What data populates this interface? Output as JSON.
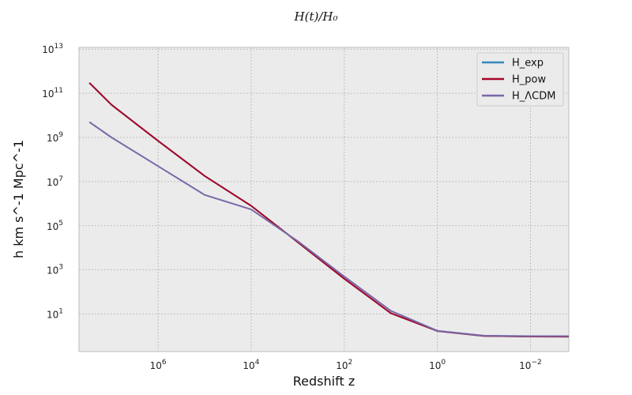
{
  "chart_data": {
    "type": "line",
    "title": "H(t)/H₀",
    "xlabel": "Redshift z",
    "ylabel": "h km s^-1 Mpc^-1",
    "x_scale": "log",
    "y_scale": "log",
    "x_reversed": true,
    "xlim": [
      50000000,
      0.0015
    ],
    "ylim": [
      0.2,
      12000000000000
    ],
    "x_ticks": [
      {
        "value": 1000000,
        "base": "10",
        "exp": "6"
      },
      {
        "value": 10000,
        "base": "10",
        "exp": "4"
      },
      {
        "value": 100,
        "base": "10",
        "exp": "2"
      },
      {
        "value": 1,
        "base": "10",
        "exp": "0"
      },
      {
        "value": 0.01,
        "base": "10",
        "exp": "−2"
      }
    ],
    "y_ticks": [
      {
        "value": 10,
        "base": "10",
        "exp": "1"
      },
      {
        "value": 1000,
        "base": "10",
        "exp": "3"
      },
      {
        "value": 100000,
        "base": "10",
        "exp": "5"
      },
      {
        "value": 10000000,
        "base": "10",
        "exp": "7"
      },
      {
        "value": 1000000000,
        "base": "10",
        "exp": "9"
      },
      {
        "value": 100000000000,
        "base": "10",
        "exp": "11"
      },
      {
        "value": 10000000000000,
        "base": "10",
        "exp": "13"
      }
    ],
    "grid": true,
    "legend_position": "top-right",
    "series": [
      {
        "name": "H_exp",
        "color": "#348ABD",
        "points": [
          [
            30000000,
            300000000000
          ],
          [
            10000000,
            30000000000
          ],
          [
            1000000,
            700000000
          ],
          [
            100000,
            18000000
          ],
          [
            10000,
            800000
          ],
          [
            1000,
            18000
          ],
          [
            100,
            400
          ],
          [
            10,
            11
          ],
          [
            1,
            1.7
          ],
          [
            0.1,
            1.02
          ],
          [
            0.01,
            0.96
          ],
          [
            0.0015,
            0.95
          ]
        ]
      },
      {
        "name": "H_pow",
        "color": "#A60628",
        "points": [
          [
            30000000,
            300000000000
          ],
          [
            10000000,
            30000000000
          ],
          [
            1000000,
            700000000
          ],
          [
            100000,
            18000000
          ],
          [
            10000,
            800000
          ],
          [
            1000,
            18000
          ],
          [
            100,
            400
          ],
          [
            10,
            11
          ],
          [
            1,
            1.7
          ],
          [
            0.1,
            1.02
          ],
          [
            0.01,
            0.96
          ],
          [
            0.0015,
            0.95
          ]
        ]
      },
      {
        "name": "H_ΛCDM",
        "color": "#7A68A6",
        "points": [
          [
            30000000,
            5000000000
          ],
          [
            10000000,
            1000000000
          ],
          [
            1000000,
            50000000
          ],
          [
            100000,
            2500000
          ],
          [
            10000,
            550000
          ],
          [
            1000,
            20000
          ],
          [
            100,
            500
          ],
          [
            10,
            14
          ],
          [
            1,
            1.75
          ],
          [
            0.1,
            1.05
          ],
          [
            0.01,
            1.0
          ],
          [
            0.0015,
            1.0
          ]
        ]
      }
    ]
  }
}
